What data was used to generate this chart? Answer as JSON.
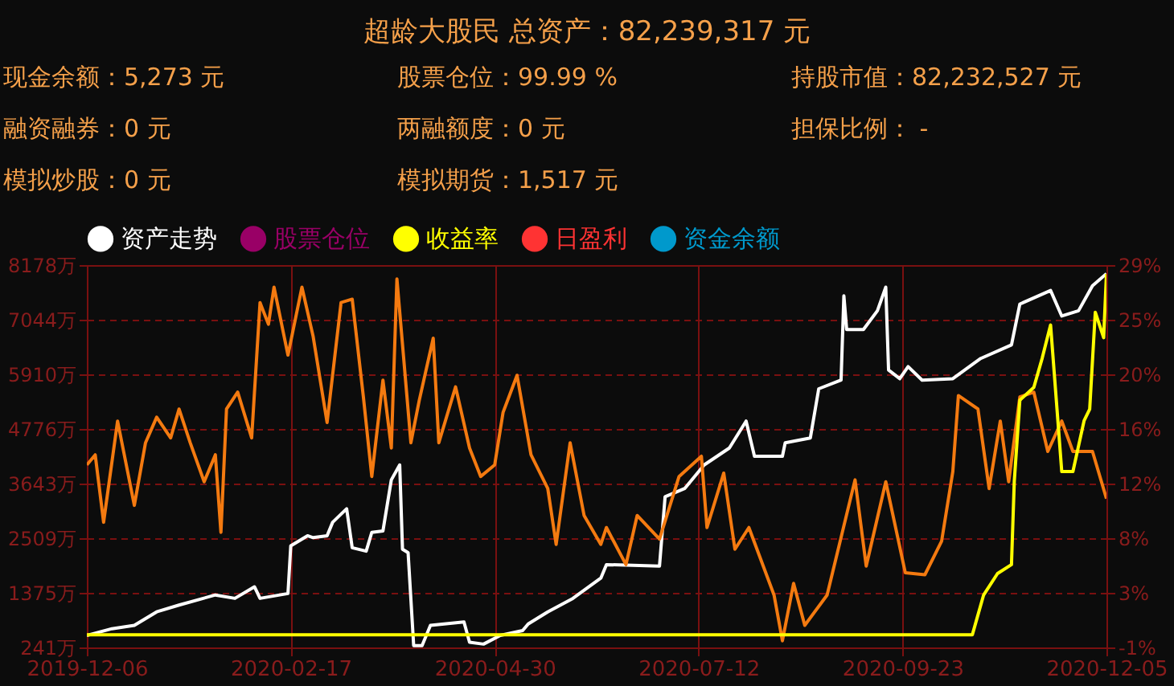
{
  "chart_data": {
    "type": "line",
    "title": "超龄大股民 总资产：82,239,317 元",
    "annotations": [
      "现金余额：5,273 元",
      "股票仓位：99.99 %",
      "持股市值：82,232,527 元",
      "融资融券：0 元",
      "两融额度：0 元",
      "担保比例： -",
      "模拟炒股：0 元",
      "模拟期货：1,517 元"
    ],
    "xlim": [
      "2019-12-06",
      "2020-12-05"
    ],
    "xticks": [
      "2019-12-06",
      "2020-02-17",
      "2020-04-30",
      "2020-07-12",
      "2020-09-23",
      "2020-12-05"
    ],
    "ylim": [
      241,
      8178
    ],
    "yticks": [
      {
        "value": 241,
        "label": "241万"
      },
      {
        "value": 1375,
        "label": "1375万"
      },
      {
        "value": 2509,
        "label": "2509万"
      },
      {
        "value": 3643,
        "label": "3643万"
      },
      {
        "value": 4776,
        "label": "4776万"
      },
      {
        "value": 5910,
        "label": "5910万"
      },
      {
        "value": 7044,
        "label": "7044万"
      },
      {
        "value": 8178,
        "label": "8178万"
      }
    ],
    "y2lim": [
      -1,
      29
    ],
    "y2ticks": [
      {
        "value": -1,
        "label": "-1%"
      },
      {
        "value": 3.29,
        "label": "3%"
      },
      {
        "value": 7.57,
        "label": "8%"
      },
      {
        "value": 11.86,
        "label": "12%"
      },
      {
        "value": 16.14,
        "label": "16%"
      },
      {
        "value": 20.43,
        "label": "20%"
      },
      {
        "value": 24.71,
        "label": "25%"
      },
      {
        "value": 29,
        "label": "29%"
      }
    ],
    "grid": true,
    "legend": "top left",
    "series": [
      {
        "name": "资产走势",
        "color": "#ffffff",
        "x": [
          "2019-12-06",
          "2019-12-15",
          "2019-12-23",
          "2019-12-31",
          "2020-01-08",
          "2020-01-21",
          "2020-01-28",
          "2020-02-04",
          "2020-02-06",
          "2020-02-16",
          "2020-02-17",
          "2020-02-23",
          "2020-02-25",
          "2020-03-01",
          "2020-03-03",
          "2020-03-08",
          "2020-03-10",
          "2020-03-15",
          "2020-03-17",
          "2020-03-21",
          "2020-03-24",
          "2020-03-27",
          "2020-03-28",
          "2020-03-30",
          "2020-04-01",
          "2020-04-04",
          "2020-04-07",
          "2020-04-19",
          "2020-04-21",
          "2020-04-26",
          "2020-05-02",
          "2020-05-10",
          "2020-05-12",
          "2020-05-19",
          "2020-05-28",
          "2020-06-07",
          "2020-06-09",
          "2020-06-28",
          "2020-06-30",
          "2020-07-07",
          "2020-07-14",
          "2020-07-23",
          "2020-07-29",
          "2020-08-01",
          "2020-08-11",
          "2020-08-12",
          "2020-08-21",
          "2020-08-24",
          "2020-09-01",
          "2020-09-02",
          "2020-09-03",
          "2020-09-09",
          "2020-09-14",
          "2020-09-17",
          "2020-09-18",
          "2020-09-22",
          "2020-09-25",
          "2020-09-30",
          "2020-10-11",
          "2020-10-21",
          "2020-11-01",
          "2020-11-04",
          "2020-11-15",
          "2020-11-19",
          "2020-11-25",
          "2020-11-30",
          "2020-12-05"
        ],
        "values": [
          490,
          630,
          700,
          980,
          1120,
          1330,
          1260,
          1500,
          1260,
          1360,
          2350,
          2560,
          2520,
          2560,
          2840,
          3120,
          2310,
          2240,
          2630,
          2660,
          3720,
          4030,
          2280,
          2210,
          280,
          280,
          700,
          770,
          350,
          310,
          490,
          590,
          730,
          980,
          1260,
          1680,
          1960,
          1930,
          3370,
          3540,
          4030,
          4380,
          4940,
          4210,
          4210,
          4490,
          4590,
          5610,
          5790,
          7540,
          6840,
          6840,
          7230,
          7720,
          6000,
          5820,
          6070,
          5790,
          5820,
          6240,
          6520,
          7370,
          7650,
          7120,
          7230,
          7750,
          8000
        ]
      },
      {
        "color": "#f47a10",
        "x": [
          "2019-12-06",
          "2019-12-09",
          "2019-12-12",
          "2019-12-17",
          "2019-12-23",
          "2019-12-27",
          "2019-12-31",
          "2020-01-05",
          "2020-01-08",
          "2020-01-12",
          "2020-01-17",
          "2020-01-21",
          "2020-01-23",
          "2020-01-25",
          "2020-01-29",
          "2020-02-03",
          "2020-02-06",
          "2020-02-09",
          "2020-02-11",
          "2020-02-16",
          "2020-02-21",
          "2020-02-25",
          "2020-03-01",
          "2020-03-06",
          "2020-03-10",
          "2020-03-14",
          "2020-03-17",
          "2020-03-21",
          "2020-03-24",
          "2020-03-26",
          "2020-03-31",
          "2020-04-03",
          "2020-04-08",
          "2020-04-10",
          "2020-04-16",
          "2020-04-21",
          "2020-04-25",
          "2020-04-30",
          "2020-05-03",
          "2020-05-08",
          "2020-05-13",
          "2020-05-19",
          "2020-05-22",
          "2020-05-27",
          "2020-06-01",
          "2020-06-07",
          "2020-06-09",
          "2020-06-16",
          "2020-06-20",
          "2020-06-28",
          "2020-07-05",
          "2020-07-13",
          "2020-07-15",
          "2020-07-21",
          "2020-07-25",
          "2020-07-30",
          "2020-08-08",
          "2020-08-11",
          "2020-08-15",
          "2020-08-19",
          "2020-08-27",
          "2020-09-06",
          "2020-09-10",
          "2020-09-17",
          "2020-09-24",
          "2020-10-01",
          "2020-10-07",
          "2020-10-11",
          "2020-10-13",
          "2020-10-20",
          "2020-10-24",
          "2020-10-28",
          "2020-10-31",
          "2020-11-04",
          "2020-11-09",
          "2020-11-14",
          "2020-11-19",
          "2020-11-23",
          "2020-11-30",
          "2020-12-05"
        ],
        "values": [
          4030,
          4240,
          2840,
          4940,
          3190,
          4490,
          5020,
          4590,
          5190,
          4490,
          3680,
          4240,
          2630,
          5190,
          5540,
          4590,
          7400,
          6950,
          7720,
          6310,
          7720,
          6700,
          4910,
          7400,
          7470,
          5440,
          3790,
          5790,
          4380,
          7890,
          4490,
          5370,
          6660,
          4490,
          5650,
          4380,
          3790,
          4030,
          5120,
          5890,
          4240,
          3540,
          2380,
          4490,
          2980,
          2380,
          2730,
          1960,
          2980,
          2490,
          3790,
          4210,
          2730,
          3860,
          2280,
          2730,
          1330,
          380,
          1570,
          700,
          1330,
          3720,
          1930,
          3680,
          1790,
          1750,
          2450,
          3890,
          5470,
          5190,
          3540,
          4940,
          3680,
          5440,
          5540,
          4310,
          4940,
          4310,
          4310,
          3330
        ]
      },
      {
        "name": "股票仓位",
        "color": "#990066"
      },
      {
        "name": "收益率",
        "color": "#ffff00",
        "axis": "y2",
        "x": [
          "2019-12-06",
          "2020-10-18",
          "2020-10-22",
          "2020-10-27",
          "2020-11-01",
          "2020-11-02",
          "2020-11-04",
          "2020-11-09",
          "2020-11-12",
          "2020-11-15",
          "2020-11-19",
          "2020-11-23",
          "2020-11-27",
          "2020-11-29",
          "2020-12-01",
          "2020-12-04",
          "2020-12-05"
        ],
        "values": [
          0,
          0,
          3.1,
          4.8,
          5.5,
          12.0,
          18.4,
          19.4,
          21.7,
          24.3,
          12.8,
          12.8,
          16.8,
          17.7,
          25.3,
          23.3,
          28.3
        ]
      },
      {
        "name": "日盈利",
        "color": "#ff3333"
      },
      {
        "name": "资金余额",
        "color": "#0099cc"
      }
    ]
  }
}
